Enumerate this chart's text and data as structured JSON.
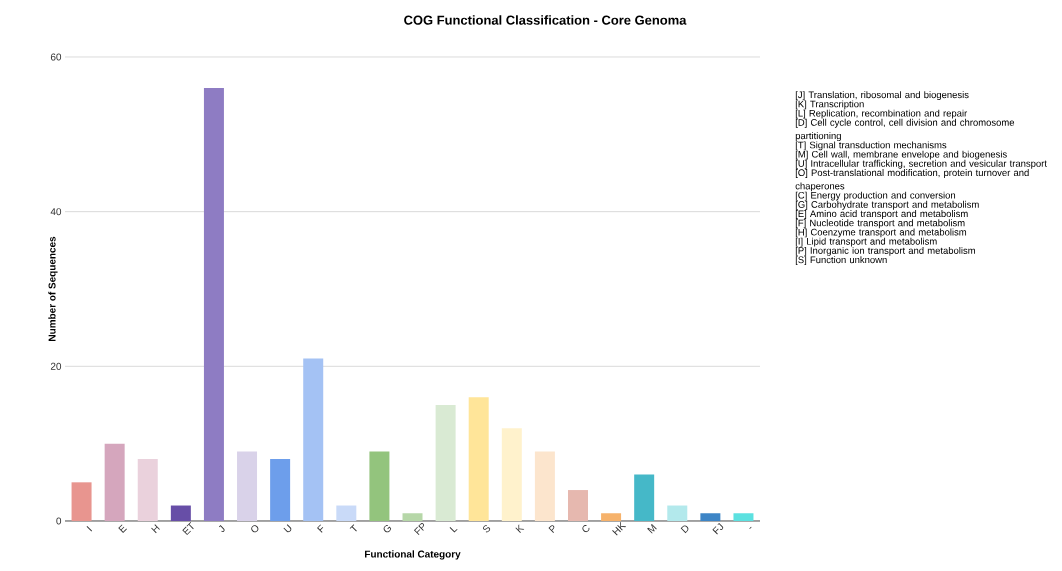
{
  "chart_data": {
    "type": "bar",
    "title": "COG Functional Classification - Core Genoma",
    "xlabel": "Functional Category",
    "ylabel": "Number of Sequences",
    "categories": [
      "I",
      "E",
      "H",
      "ET",
      "J",
      "O",
      "U",
      "F",
      "T",
      "G",
      "FP",
      "L",
      "S",
      "K",
      "P",
      "C",
      "HK",
      "M",
      "D",
      "FJ",
      "-"
    ],
    "values": [
      5,
      10,
      8,
      2,
      56,
      9,
      8,
      21,
      2,
      9,
      1,
      15,
      16,
      12,
      9,
      4,
      1,
      6,
      2,
      1,
      1
    ],
    "colors": [
      "#e8958f",
      "#d5a6bd",
      "#ead1dc",
      "#674ea7",
      "#8e7cc3",
      "#d9d2e9",
      "#6d9eeb",
      "#a4c2f4",
      "#c9daf8",
      "#93c47d",
      "#b6d7a8",
      "#d9ead3",
      "#ffe599",
      "#fff2cc",
      "#fce5cd",
      "#e6b8af",
      "#f6b26b",
      "#45b8c8",
      "#b3e9ec",
      "#3d85c6",
      "#5ce1e0"
    ],
    "ylim": [
      0,
      60
    ],
    "yticks": [
      0,
      20,
      40,
      60
    ],
    "grid": "y",
    "annotations": [
      "[J] Translation, ribosomal and biogenesis",
      "[K] Transcription",
      "[L] Replication, recombination and repair",
      "[D] Cell cycle control, cell division and chromosome partitioning",
      "[T] Signal transduction mechanisms",
      "[M] Cell wall, membrane envelope and biogenesis",
      "[U] Intracellular trafficking, secretion and vesicular transport",
      "[O] Post-translational modification, protein turnover and chaperones",
      "[C] Energy production and conversion",
      "[G] Carbohydrate transport and metabolism",
      "[E] Amino acid transport and metabolism",
      "[F] Nucleotide transport and metabolism",
      "[H] Coenzyme transport and metabolism",
      "[I] Lipid transport and metabolism",
      "[P] Inorganic ion transport and metabolism",
      "[S] Function unknown"
    ]
  }
}
